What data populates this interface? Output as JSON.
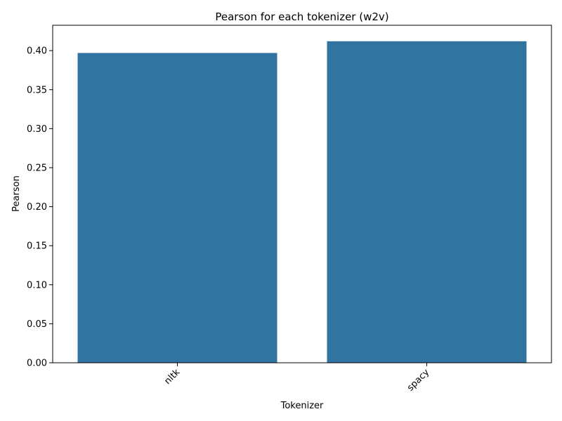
{
  "chart_data": {
    "type": "bar",
    "title": "Pearson for each tokenizer (w2v)",
    "xlabel": "Tokenizer",
    "ylabel": "Pearson",
    "categories": [
      "nltk",
      "spacy"
    ],
    "values": [
      0.397,
      0.412
    ],
    "ylim": [
      0,
      0.4325
    ],
    "yticks": [
      "0.00",
      "0.05",
      "0.10",
      "0.15",
      "0.20",
      "0.25",
      "0.30",
      "0.35",
      "0.40"
    ],
    "grid": false,
    "legend": "none",
    "bar_color": "#3274a1"
  }
}
